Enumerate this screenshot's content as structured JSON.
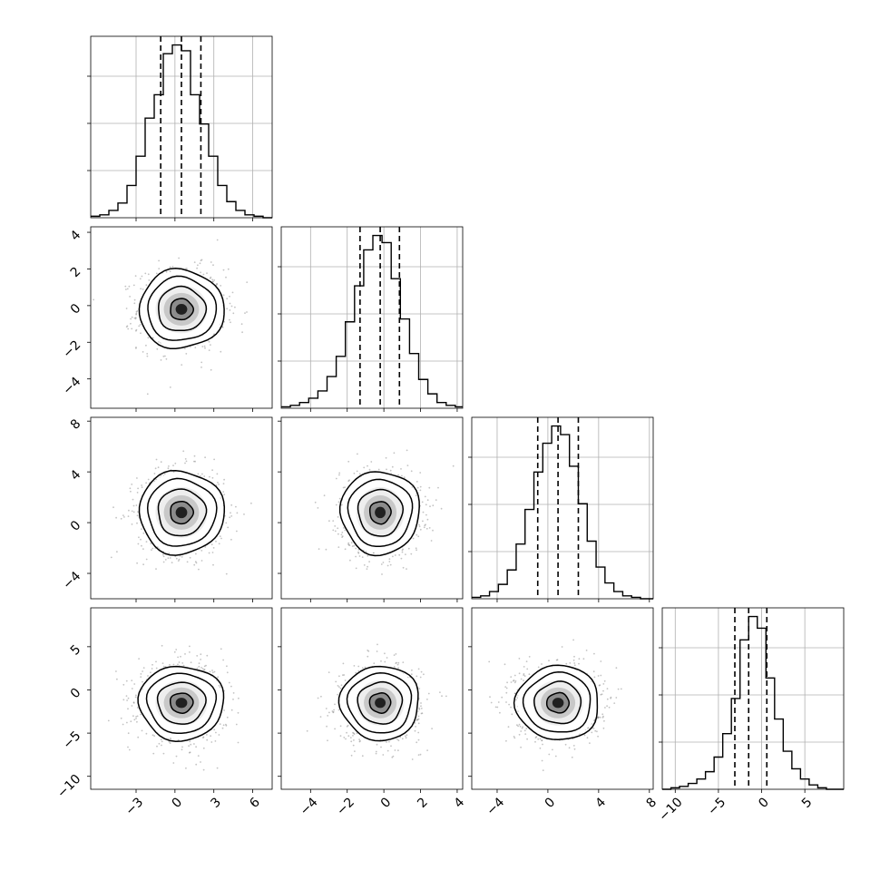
{
  "chart_data": {
    "type": "corner",
    "n_params": 4,
    "grid": true,
    "colors": {
      "scatter": "#7a7a7a",
      "line": "#000000",
      "grid": "#b0b0b0"
    },
    "ranges": [
      [
        -6.5,
        7.5
      ],
      [
        -5.6,
        4.3
      ],
      [
        -6.0,
        8.3
      ],
      [
        -11.5,
        9.5
      ]
    ],
    "ticks": [
      [
        -3,
        0,
        3,
        6
      ],
      [
        -4,
        -2,
        0,
        2,
        4
      ],
      [
        -4,
        0,
        4,
        8
      ],
      [
        -10,
        -5,
        0,
        5
      ]
    ],
    "tick_labels": [
      [
        "−3",
        "0",
        "3",
        "6"
      ],
      [
        "−4",
        "−2",
        "0",
        "2",
        "4"
      ],
      [
        "−4",
        "0",
        "4",
        "8"
      ],
      [
        "−10",
        "−5",
        "0",
        "5"
      ]
    ],
    "distributions": [
      {
        "mean": 0.5,
        "std": 1.6
      },
      {
        "mean": -0.2,
        "std": 1.05
      },
      {
        "mean": 0.8,
        "std": 1.6
      },
      {
        "mean": -1.5,
        "std": 2.1
      }
    ],
    "quantiles": [
      [
        -1.1,
        0.5,
        2.0
      ],
      [
        -1.3,
        -0.2,
        0.85
      ],
      [
        -0.8,
        0.8,
        2.4
      ],
      [
        -3.1,
        -1.5,
        0.6
      ]
    ],
    "histograms": [
      {
        "bin_edges": [
          -6.5,
          -5.8,
          -5.1,
          -4.4,
          -3.7,
          -3.0,
          -2.3,
          -1.6,
          -0.9,
          -0.2,
          0.5,
          1.2,
          1.9,
          2.6,
          3.3,
          4.0,
          4.7,
          5.4,
          6.1,
          6.8,
          7.5
        ],
        "counts": [
          1,
          2,
          5,
          10,
          22,
          42,
          68,
          84,
          112,
          118,
          114,
          84,
          64,
          42,
          22,
          11,
          5,
          2,
          1,
          0
        ]
      },
      {
        "bin_edges": [
          -5.6,
          -5.1,
          -4.6,
          -4.1,
          -3.6,
          -3.1,
          -2.6,
          -2.1,
          -1.6,
          -1.1,
          -0.6,
          -0.1,
          0.4,
          0.9,
          1.4,
          1.9,
          2.4,
          2.9,
          3.4,
          3.9,
          4.3
        ],
        "counts": [
          1,
          2,
          4,
          7,
          12,
          22,
          36,
          60,
          85,
          110,
          120,
          115,
          90,
          62,
          38,
          20,
          10,
          4,
          2,
          1
        ]
      },
      {
        "bin_edges": [
          -6.0,
          -5.3,
          -4.6,
          -3.9,
          -3.2,
          -2.5,
          -1.8,
          -1.1,
          -0.4,
          0.3,
          1.0,
          1.7,
          2.4,
          3.1,
          3.8,
          4.5,
          5.2,
          5.9,
          6.6,
          7.3,
          8.3
        ],
        "counts": [
          1,
          2,
          5,
          10,
          20,
          38,
          62,
          88,
          108,
          120,
          114,
          92,
          66,
          40,
          22,
          11,
          5,
          2,
          1,
          0
        ]
      },
      {
        "bin_edges": [
          -11.5,
          -10.5,
          -9.5,
          -8.5,
          -7.5,
          -6.5,
          -5.5,
          -4.5,
          -3.5,
          -2.5,
          -1.5,
          -0.5,
          0.5,
          1.5,
          2.5,
          3.5,
          4.5,
          5.5,
          6.5,
          7.5,
          9.5
        ],
        "counts": [
          0,
          1,
          2,
          4,
          7,
          12,
          22,
          38,
          62,
          102,
          118,
          110,
          76,
          48,
          26,
          14,
          7,
          3,
          1,
          0
        ]
      }
    ]
  }
}
